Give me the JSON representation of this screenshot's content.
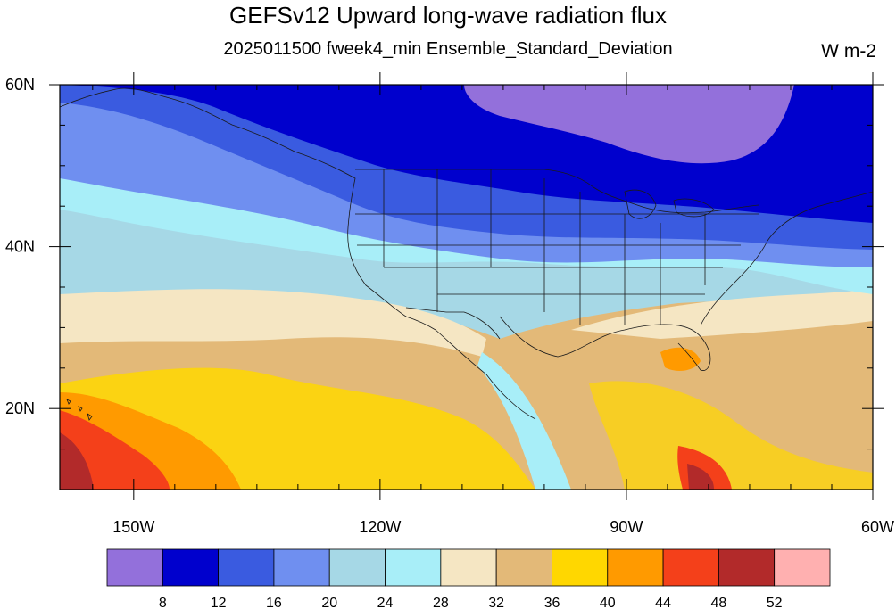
{
  "header": {
    "title": "GEFSv12 Upward long-wave radiation flux",
    "subtitle": "2025011500 fweek4_min Ensemble_Standard_Deviation",
    "units": "W m-2"
  },
  "map": {
    "projection": "cylindrical-equidistant",
    "lon_range": [
      -159,
      -60
    ],
    "lat_range": [
      10,
      60
    ],
    "x_tick_labels": [
      "150W",
      "120W",
      "90W",
      "60W"
    ],
    "x_tick_values": [
      -150,
      -120,
      -90,
      -60
    ],
    "y_tick_labels": [
      "20N",
      "40N",
      "60N"
    ],
    "y_tick_values": [
      20,
      40,
      60
    ],
    "overlays": [
      "coastlines",
      "us-state-boundaries",
      "country-borders"
    ]
  },
  "colorbar": {
    "levels": [
      "8",
      "12",
      "16",
      "20",
      "24",
      "28",
      "32",
      "36",
      "40",
      "44",
      "48",
      "52"
    ],
    "colors": [
      "#9370db",
      "#0000cd",
      "#3a5be0",
      "#6f8ff0",
      "#a6d8e6",
      "#a8eef8",
      "#f5e6c3",
      "#e3b978",
      "#ffd700",
      "#ff9a00",
      "#f4401a",
      "#b22a2a",
      "#ffb0b0"
    ]
  }
}
